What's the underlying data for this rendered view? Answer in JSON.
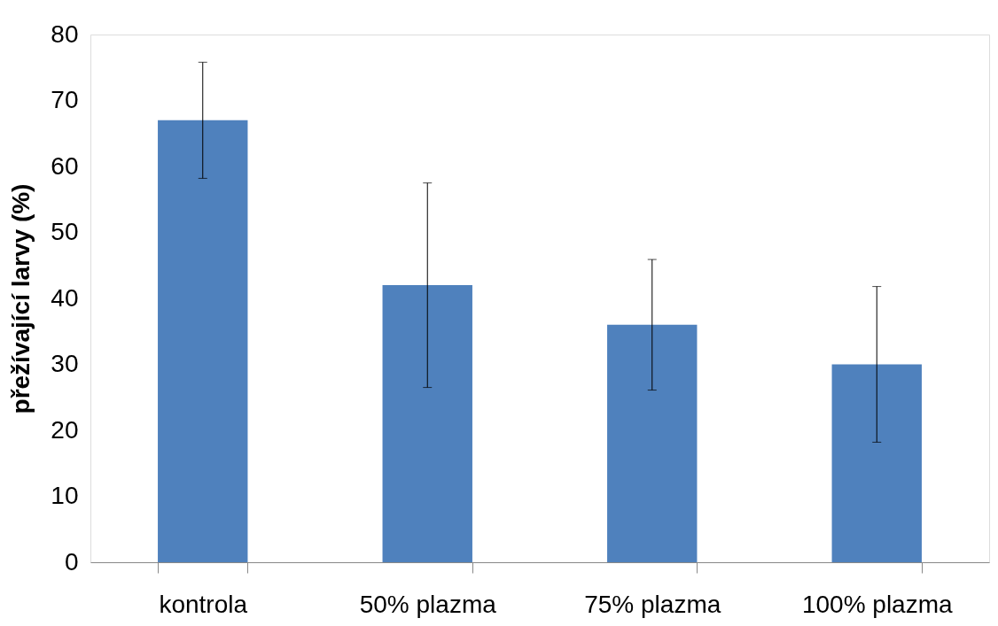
{
  "chart_data": {
    "type": "bar",
    "ylabel": "přežívající larvy (%)",
    "categories": [
      "kontrola",
      "50% plazma",
      "75% plazma",
      "100% plazma"
    ],
    "values": [
      67,
      42,
      36,
      30
    ],
    "errors": [
      8.8,
      15.5,
      9.9,
      11.8
    ],
    "color": "#4f81bd",
    "ylim": [
      0,
      80
    ],
    "yticks": [
      0,
      10,
      20,
      30,
      40,
      50,
      60,
      70,
      80
    ],
    "grid": false
  }
}
